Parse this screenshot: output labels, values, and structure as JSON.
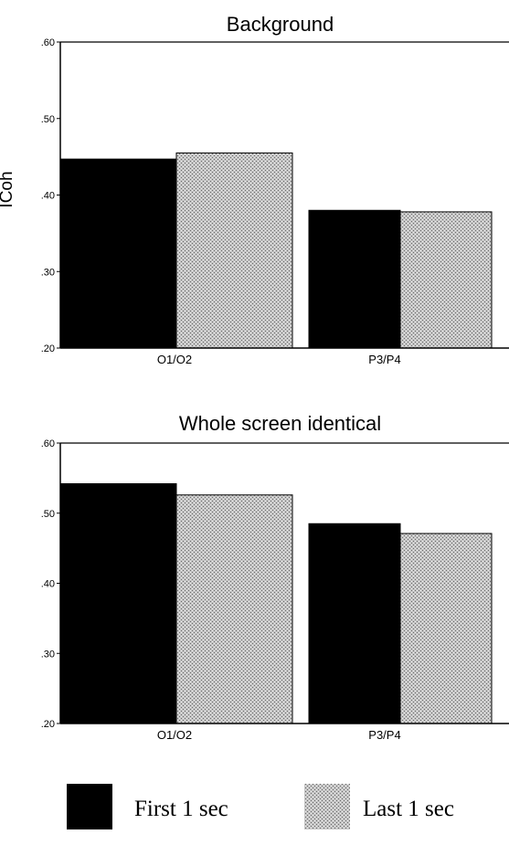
{
  "legend": [
    {
      "label": "First 1 sec",
      "color": "#000000",
      "pattern": "solid"
    },
    {
      "label": "Last 1 sec",
      "color": "#aaaaaa",
      "pattern": "stipple"
    }
  ],
  "chart_data": [
    {
      "type": "bar",
      "title": "Background",
      "ylabel": "ICoh",
      "xlabel": "",
      "ylim": [
        0.2,
        0.6
      ],
      "yticks": [
        0.2,
        0.3,
        0.4,
        0.5,
        0.6
      ],
      "ytick_labels": [
        ".20",
        ".30",
        ".40",
        ".50",
        ".60"
      ],
      "categories": [
        "O1/O2",
        "P3/P4"
      ],
      "series": [
        {
          "name": "First 1 sec",
          "values": [
            0.447,
            0.38
          ]
        },
        {
          "name": "Last 1 sec",
          "values": [
            0.455,
            0.378
          ]
        }
      ],
      "grid": false
    },
    {
      "type": "bar",
      "title": "Whole screen identical",
      "ylabel": "",
      "xlabel": "",
      "ylim": [
        0.2,
        0.6
      ],
      "yticks": [
        0.2,
        0.3,
        0.4,
        0.5,
        0.6
      ],
      "ytick_labels": [
        ".20",
        ".30",
        ".40",
        ".50",
        ".60"
      ],
      "categories": [
        "O1/O2",
        "P3/P4"
      ],
      "series": [
        {
          "name": "First 1 sec",
          "values": [
            0.542,
            0.485
          ]
        },
        {
          "name": "Last 1 sec",
          "values": [
            0.526,
            0.471
          ]
        }
      ],
      "grid": false
    }
  ]
}
